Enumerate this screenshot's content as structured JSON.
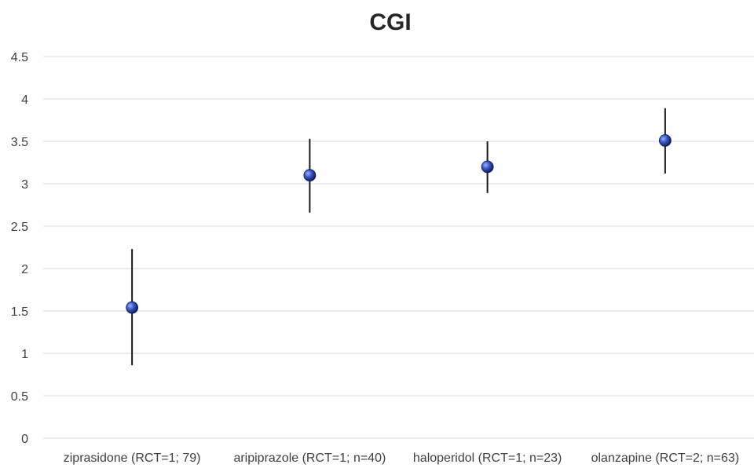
{
  "chart_data": {
    "type": "scatter",
    "title": "CGI",
    "xlabel": "",
    "ylabel": "",
    "ylim": [
      0,
      4.5
    ],
    "y_ticks": [
      "0",
      "0.5",
      "1",
      "1.5",
      "2",
      "2.5",
      "3",
      "3.5",
      "4",
      "4.5"
    ],
    "y_tick_values": [
      0,
      0.5,
      1,
      1.5,
      2,
      2.5,
      3,
      3.5,
      4,
      4.5
    ],
    "categories": [
      "ziprasidone (RCT=1; 79)",
      "aripiprazole (RCT=1; n=40)",
      "haloperidol (RCT=1; n=23)",
      "olanzapine (RCT=2; n=63)"
    ],
    "values": [
      1.54,
      3.1,
      3.2,
      3.51
    ],
    "error_low": [
      0.86,
      2.66,
      2.89,
      3.12
    ],
    "error_high": [
      2.23,
      3.53,
      3.5,
      3.89
    ],
    "grid": true,
    "legend": "none",
    "marker_color": "#1f3c9a",
    "marker_highlight": "#8fa6f0",
    "errorbar_color": "#1a1a1a",
    "gridline_color": "#d9d9d9"
  }
}
